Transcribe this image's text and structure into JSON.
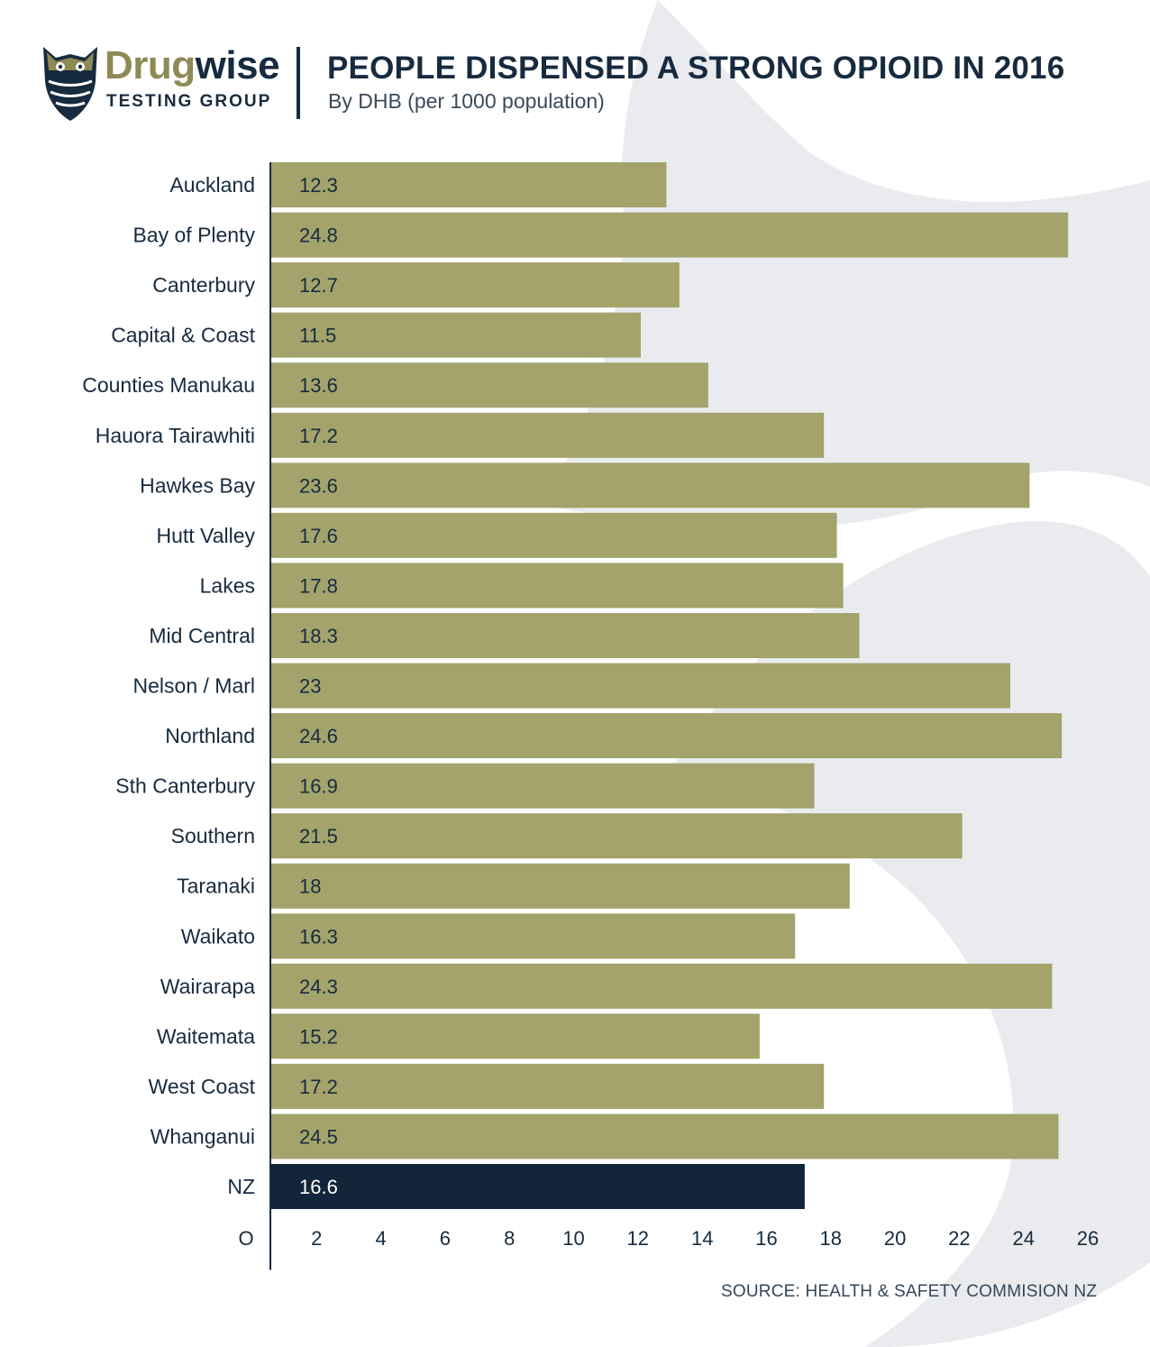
{
  "header": {
    "logo_word_part1": "Drug",
    "logo_word_part2": "wise",
    "logo_tagline": "TESTING GROUP",
    "title": "PEOPLE DISPENSED A STRONG OPIOID IN 2016",
    "subtitle": "By DHB (per 1000 population)"
  },
  "source": "SOURCE: HEALTH & SAFETY COMMISION NZ",
  "colors": {
    "bar": "#a3a36b",
    "highlight_bar": "#13253a",
    "navy": "#172b3f",
    "logo_olive": "#8f8a55",
    "watermark": "#e9ebee"
  },
  "chart_data": {
    "type": "bar",
    "orientation": "horizontal",
    "title": "PEOPLE DISPENSED A STRONG OPIOID IN 2016",
    "subtitle": "By DHB (per 1000 population)",
    "xlabel": "",
    "ylabel": "",
    "categories": [
      "Auckland",
      "Bay of Plenty",
      "Canterbury",
      "Capital & Coast",
      "Counties Manukau",
      "Hauora Tairawhiti",
      "Hawkes Bay",
      "Hutt Valley",
      "Lakes",
      "Mid Central",
      "Nelson / Marl",
      "Northland",
      "Sth Canterbury",
      "Southern",
      "Taranaki",
      "Waikato",
      "Wairarapa",
      "Waitemata",
      "West Coast",
      "Whanganui",
      "NZ"
    ],
    "values": [
      12.3,
      24.8,
      12.7,
      11.5,
      13.6,
      17.2,
      23.6,
      17.6,
      17.8,
      18.3,
      23,
      24.6,
      16.9,
      21.5,
      18,
      16.3,
      24.3,
      15.2,
      17.2,
      24.5,
      16.6
    ],
    "value_labels": [
      "12.3",
      "24.8",
      "12.7",
      "11.5",
      "13.6",
      "17.2",
      "23.6",
      "17.6",
      "17.8",
      "18.3",
      "23",
      "24.6",
      "16.9",
      "21.5",
      "18",
      "16.3",
      "24.3",
      "15.2",
      "17.2",
      "24.5",
      "16.6"
    ],
    "highlight": "NZ",
    "x_ticks": [
      "O",
      "2",
      "4",
      "6",
      "8",
      "10",
      "12",
      "14",
      "16",
      "18",
      "20",
      "22",
      "24",
      "26"
    ],
    "xlim": [
      0,
      26
    ],
    "grid": false,
    "legend": "none"
  }
}
